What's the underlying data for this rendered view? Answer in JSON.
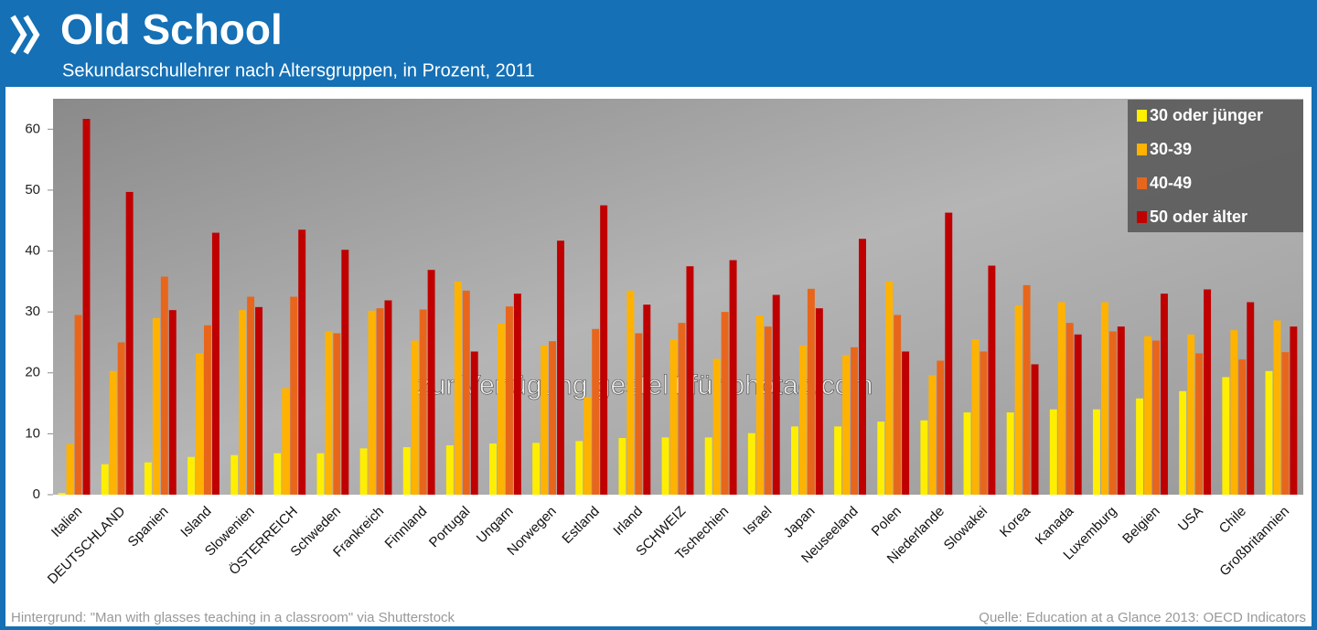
{
  "chart_data": {
    "type": "bar",
    "title": "Old School",
    "subtitle": "Sekundarschullehrer nach Altersgruppen, in Prozent, 2011",
    "categories": [
      "Italien",
      "DEUTSCHLAND",
      "Spanien",
      "Island",
      "Slowenien",
      "ÖSTERREICH",
      "Schweden",
      "Frankreich",
      "Finnland",
      "Portugal",
      "Ungarn",
      "Norwegen",
      "Estland",
      "Irland",
      "SCHWEIZ",
      "Tschechien",
      "Israel",
      "Japan",
      "Neuseeland",
      "Polen",
      "Niederlande",
      "Slowakei",
      "Korea",
      "Kanada",
      "Luxemburg",
      "Belgien",
      "USA",
      "Chile",
      "Großbritannien"
    ],
    "series": [
      {
        "name": "30 oder jünger",
        "color": "#ffee00",
        "values": [
          0.3,
          5.0,
          5.3,
          6.2,
          6.5,
          6.8,
          6.8,
          7.6,
          7.8,
          8.1,
          8.4,
          8.5,
          8.8,
          9.3,
          9.4,
          9.4,
          10.1,
          11.2,
          11.2,
          12.0,
          12.2,
          13.5,
          13.5,
          14.0,
          14.0,
          15.8,
          17.0,
          19.3,
          20.3
        ]
      },
      {
        "name": "30-39",
        "color": "#ffb300",
        "values": [
          8.3,
          20.3,
          29.0,
          23.2,
          30.3,
          17.5,
          26.8,
          30.2,
          25.3,
          35.0,
          28.1,
          24.5,
          16.0,
          33.5,
          25.5,
          22.3,
          29.4,
          24.5,
          22.9,
          35.0,
          19.6,
          25.5,
          31.1,
          31.6,
          31.6,
          26.0,
          26.3,
          27.0,
          28.6
        ]
      },
      {
        "name": "40-49",
        "color": "#e8661c",
        "values": [
          29.5,
          25.0,
          35.8,
          27.8,
          32.5,
          32.5,
          26.5,
          30.6,
          30.4,
          33.5,
          30.9,
          25.2,
          27.2,
          26.5,
          28.2,
          30.0,
          27.6,
          33.8,
          24.2,
          29.5,
          22.0,
          23.5,
          34.4,
          28.2,
          26.8,
          25.3,
          23.2,
          22.2,
          23.4
        ]
      },
      {
        "name": "50 oder älter",
        "color": "#c00000",
        "values": [
          61.7,
          49.7,
          30.3,
          43.0,
          30.8,
          43.5,
          40.2,
          31.9,
          36.9,
          23.5,
          33.0,
          41.7,
          47.5,
          31.2,
          37.5,
          38.5,
          32.8,
          30.6,
          42.0,
          23.5,
          46.3,
          37.6,
          21.4,
          26.3,
          27.6,
          33.0,
          33.7,
          31.6,
          27.6
        ]
      }
    ],
    "ylim": [
      0,
      65
    ],
    "yticks": [
      0,
      10,
      20,
      30,
      40,
      50,
      60
    ],
    "legend": "top-right",
    "watermark": "zur Verfügung gestellt für photaq.com",
    "footnote_left": "Hintergrund: \"Man with glasses teaching in a classroom\" via Shutterstock",
    "footnote_right": "Quelle: Education at a Glance 2013: OECD Indicators"
  }
}
